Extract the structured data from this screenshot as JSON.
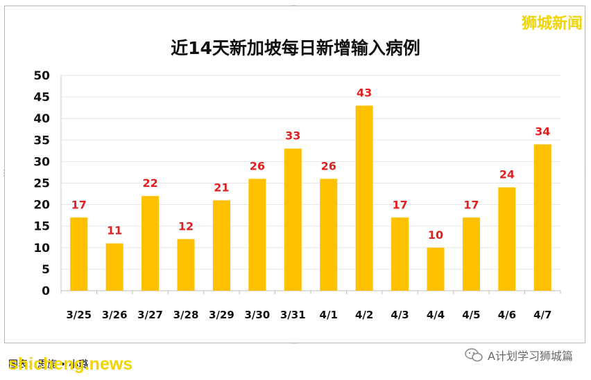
{
  "watermark_top": "狮城新闻",
  "credit_text": "图表：思旎 • 小璐",
  "watermark_bottom": "shicheng.news",
  "wechat_account": "A计划学习狮城篇",
  "chart_data": {
    "type": "bar",
    "title": "近14天新加坡每日新增输入病例",
    "categories": [
      "3/25",
      "3/26",
      "3/27",
      "3/28",
      "3/29",
      "3/30",
      "3/31",
      "4/1",
      "4/2",
      "4/3",
      "4/4",
      "4/5",
      "4/6",
      "4/7"
    ],
    "values": [
      17,
      11,
      22,
      12,
      21,
      26,
      33,
      26,
      43,
      17,
      10,
      17,
      24,
      34
    ],
    "ylim": [
      0,
      50
    ],
    "yticks": [
      0,
      5,
      10,
      15,
      20,
      25,
      30,
      35,
      40,
      45,
      50
    ],
    "grid": true,
    "bar_color": "#ffc000",
    "label_color": "#e02020"
  }
}
